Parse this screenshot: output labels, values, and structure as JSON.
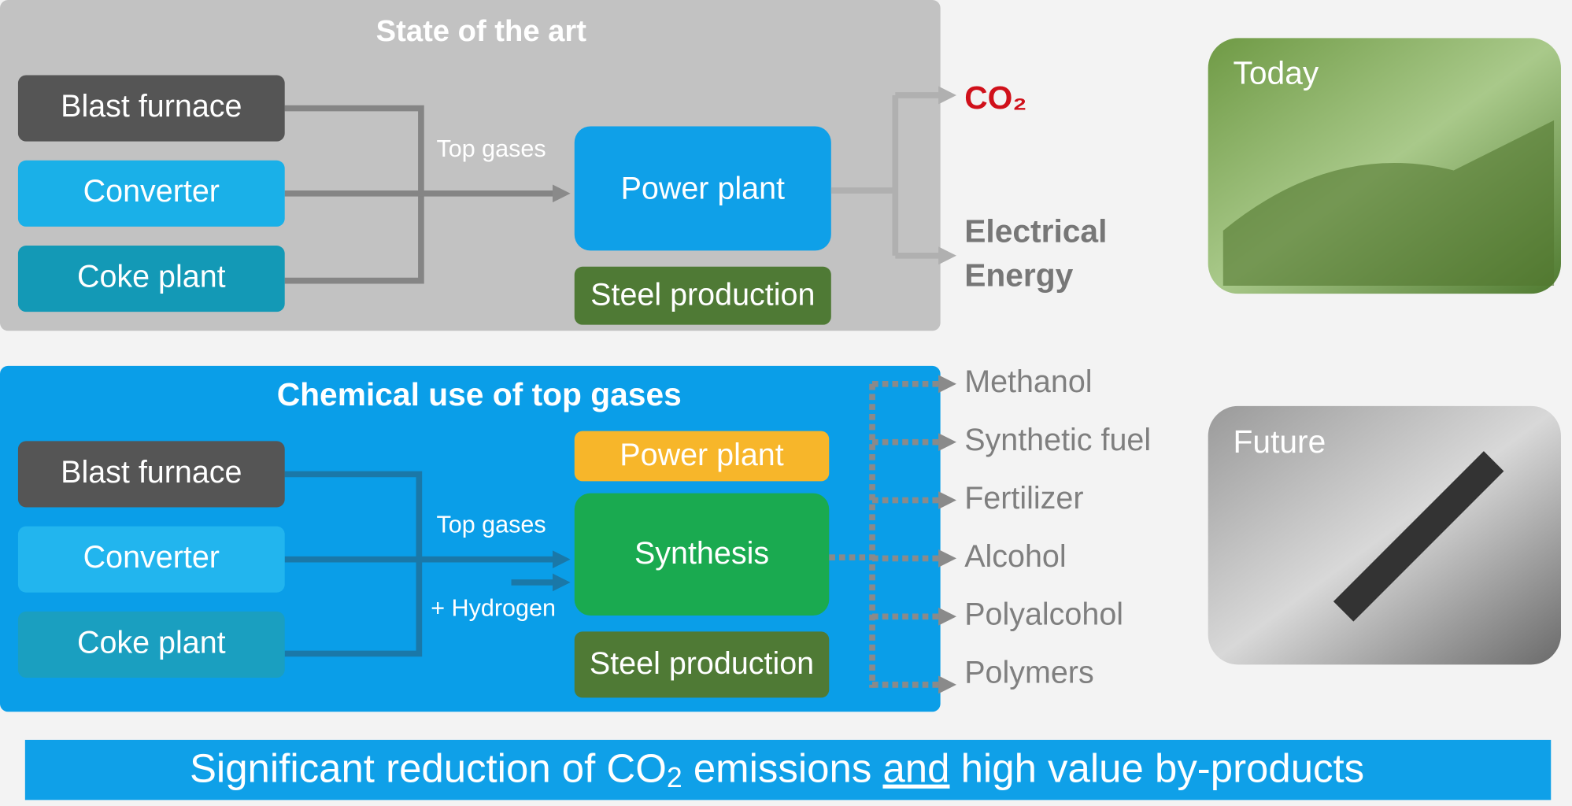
{
  "top_panel": {
    "title": "State of the art",
    "sources": [
      "Blast furnace",
      "Converter",
      "Coke plant"
    ],
    "flow_label": "Top gases",
    "plant": "Power plant",
    "steel": "Steel production",
    "outputs": {
      "co2": "CO₂",
      "energy": [
        "Electrical",
        "Energy"
      ]
    },
    "photo_label": "Today"
  },
  "bottom_panel": {
    "title": "Chemical use of top gases",
    "sources": [
      "Blast furnace",
      "Converter",
      "Coke plant"
    ],
    "flow_label": "Top gases",
    "hydrogen_label": "+ Hydrogen",
    "plant": "Power plant",
    "synthesis": "Synthesis",
    "steel": "Steel production",
    "products": [
      "Methanol",
      "Synthetic fuel",
      "Fertilizer",
      "Alcohol",
      "Polyalcohol",
      "Polymers"
    ],
    "photo_label": "Future"
  },
  "banner": {
    "parts": [
      "Significant reduction of CO",
      "2",
      " emissions ",
      "and",
      " high value by-products"
    ]
  }
}
